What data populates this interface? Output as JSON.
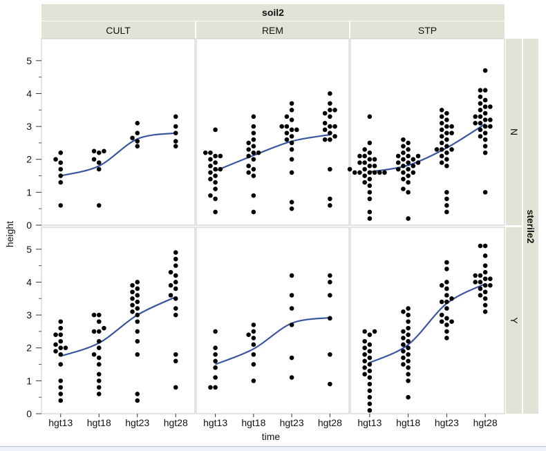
{
  "chart_data": {
    "type": "scatter",
    "title": "",
    "xlabel": "time",
    "ylabel": "height",
    "column_group_label": "soil2",
    "row_group_label": "sterile2",
    "categories": [
      "hgt13",
      "hgt18",
      "hgt23",
      "hgt28"
    ],
    "ylim": [
      0,
      5.5
    ],
    "yticks": [
      0,
      1,
      2,
      3,
      4,
      5
    ],
    "columns": [
      "CULT",
      "REM",
      "STP"
    ],
    "rows": [
      "N",
      "Y"
    ],
    "marker_color": "#000000",
    "smoother_color": "#3a55a0",
    "panels": [
      {
        "column": "CULT",
        "row": "N",
        "points": {
          "hgt13": [
            0.6,
            1.3,
            1.5,
            1.7,
            1.9,
            2.0,
            2.2
          ],
          "hgt18": [
            0.6,
            1.7,
            1.9,
            2.0,
            2.2,
            2.25,
            2.25
          ],
          "hgt23": [
            2.4,
            2.55,
            2.65,
            2.8,
            3.1
          ],
          "hgt28": [
            2.4,
            2.55,
            2.8,
            3.0,
            3.3
          ]
        },
        "smoother": [
          1.5,
          1.8,
          2.62,
          2.8
        ]
      },
      {
        "column": "REM",
        "row": "N",
        "points": {
          "hgt13": [
            0.4,
            0.8,
            0.9,
            1.1,
            1.3,
            1.4,
            1.5,
            1.6,
            1.7,
            1.7,
            1.8,
            1.9,
            2.0,
            2.1,
            2.1,
            2.2,
            2.2,
            2.9
          ],
          "hgt18": [
            0.4,
            0.9,
            1.5,
            1.6,
            1.7,
            1.8,
            2.0,
            2.1,
            2.2,
            2.2,
            2.3,
            2.4,
            2.5,
            2.6,
            2.8,
            3.0,
            3.3
          ],
          "hgt23": [
            0.5,
            0.7,
            1.6,
            2.0,
            2.3,
            2.5,
            2.6,
            2.7,
            2.8,
            2.9,
            2.9,
            3.0,
            3.0,
            3.2,
            3.3,
            3.5,
            3.7
          ],
          "hgt28": [
            0.6,
            0.8,
            1.7,
            2.6,
            2.6,
            2.7,
            2.8,
            2.9,
            3.0,
            3.0,
            3.1,
            3.3,
            3.4,
            3.5,
            3.5,
            3.7,
            4.0
          ]
        },
        "smoother": [
          1.65,
          2.12,
          2.55,
          2.75
        ]
      },
      {
        "column": "STP",
        "row": "N",
        "points": {
          "hgt13": [
            0.2,
            0.4,
            0.8,
            1.0,
            1.2,
            1.3,
            1.4,
            1.5,
            1.6,
            1.6,
            1.6,
            1.6,
            1.6,
            1.6,
            1.7,
            1.7,
            1.8,
            1.8,
            1.9,
            1.9,
            2.0,
            2.0,
            2.1,
            2.1,
            2.2,
            2.3,
            2.5,
            3.3
          ],
          "hgt18": [
            0.2,
            1.0,
            1.1,
            1.3,
            1.4,
            1.5,
            1.6,
            1.6,
            1.7,
            1.7,
            1.8,
            1.8,
            1.9,
            1.9,
            1.9,
            2.0,
            2.0,
            2.1,
            2.1,
            2.1,
            2.2,
            2.3,
            2.4,
            2.5,
            2.6
          ],
          "hgt23": [
            0.4,
            0.6,
            0.8,
            1.0,
            1.8,
            1.9,
            2.0,
            2.1,
            2.2,
            2.3,
            2.3,
            2.3,
            2.4,
            2.5,
            2.6,
            2.7,
            2.8,
            2.8,
            2.9,
            3.0,
            3.0,
            3.1,
            3.2,
            3.3,
            3.4,
            3.5
          ],
          "hgt28": [
            1.0,
            2.2,
            2.4,
            2.6,
            2.7,
            2.8,
            2.9,
            3.0,
            3.0,
            3.1,
            3.1,
            3.2,
            3.2,
            3.3,
            3.3,
            3.4,
            3.5,
            3.6,
            3.6,
            3.7,
            3.8,
            3.9,
            4.1,
            4.1,
            4.7
          ]
        },
        "smoother": [
          1.62,
          1.82,
          2.35,
          3.08
        ]
      },
      {
        "column": "CULT",
        "row": "Y",
        "points": {
          "hgt13": [
            0.4,
            0.6,
            0.8,
            1.0,
            1.5,
            1.8,
            1.9,
            2.0,
            2.0,
            2.1,
            2.2,
            2.4,
            2.4,
            2.6,
            2.8
          ],
          "hgt18": [
            0.6,
            0.8,
            1.0,
            1.2,
            1.5,
            1.7,
            1.8,
            2.0,
            2.2,
            2.5,
            2.5,
            2.6,
            2.8,
            3.0,
            3.0
          ],
          "hgt23": [
            0.4,
            0.6,
            1.8,
            2.2,
            2.5,
            2.8,
            3.0,
            3.1,
            3.2,
            3.3,
            3.4,
            3.5,
            3.6,
            3.7,
            3.8,
            3.9,
            4.0
          ],
          "hgt28": [
            0.8,
            1.6,
            1.8,
            3.0,
            3.2,
            3.5,
            3.6,
            3.8,
            3.9,
            4.0,
            4.2,
            4.3,
            4.5,
            4.7,
            4.9
          ]
        },
        "smoother": [
          1.75,
          2.15,
          3.0,
          3.55
        ]
      },
      {
        "column": "REM",
        "row": "Y",
        "points": {
          "hgt13": [
            0.8,
            0.8,
            1.1,
            1.4,
            1.6,
            1.8,
            2.0,
            2.5
          ],
          "hgt18": [
            1.0,
            1.5,
            1.8,
            2.1,
            2.3,
            2.4,
            2.5,
            2.7
          ],
          "hgt23": [
            1.1,
            1.7,
            2.7,
            3.2,
            3.6,
            4.2
          ],
          "hgt28": [
            0.9,
            1.8,
            2.9,
            3.6,
            4.0,
            4.2
          ]
        },
        "smoother": [
          1.5,
          1.97,
          2.75,
          2.92
        ]
      },
      {
        "column": "STP",
        "row": "Y",
        "points": {
          "hgt13": [
            0.1,
            0.3,
            0.5,
            0.7,
            0.9,
            1.1,
            1.2,
            1.3,
            1.4,
            1.5,
            1.6,
            1.7,
            1.8,
            1.9,
            2.0,
            2.1,
            2.2,
            2.4,
            2.5,
            2.5
          ],
          "hgt18": [
            0.5,
            1.0,
            1.2,
            1.4,
            1.5,
            1.6,
            1.7,
            1.8,
            1.9,
            2.0,
            2.1,
            2.2,
            2.3,
            2.4,
            2.5,
            2.6,
            2.8,
            3.0,
            3.1,
            3.2
          ],
          "hgt23": [
            2.3,
            2.5,
            2.7,
            2.8,
            2.8,
            2.9,
            3.0,
            3.2,
            3.4,
            3.4,
            3.5,
            3.6,
            3.8,
            3.9,
            4.0,
            4.4,
            4.6
          ],
          "hgt28": [
            3.1,
            3.3,
            3.5,
            3.6,
            3.7,
            3.8,
            3.9,
            3.9,
            4.0,
            4.0,
            4.1,
            4.1,
            4.2,
            4.2,
            4.3,
            4.5,
            4.8,
            5.1,
            5.1
          ]
        },
        "smoother": [
          1.55,
          2.1,
          3.35,
          3.95
        ]
      }
    ]
  }
}
